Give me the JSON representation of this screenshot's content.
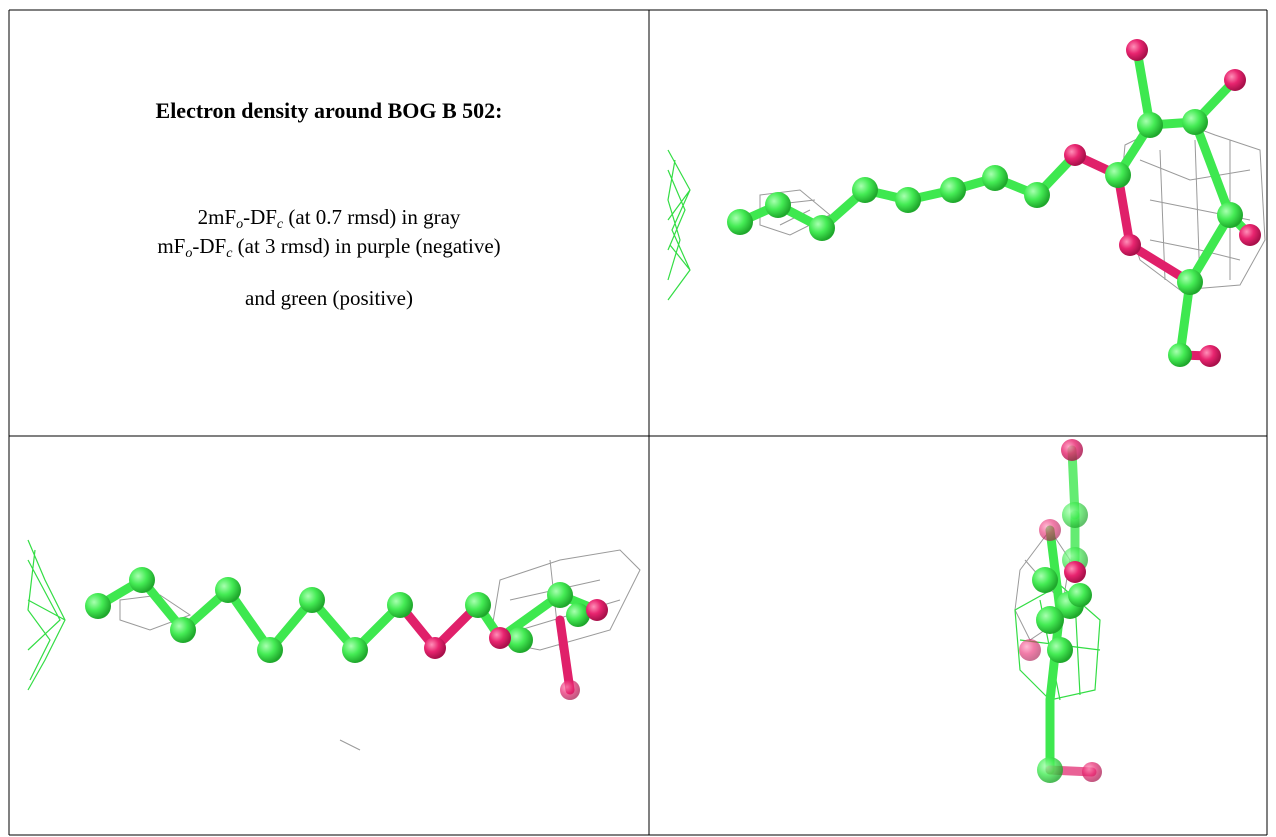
{
  "header": {
    "title": "Electron density around BOG B 502:"
  },
  "legend": {
    "lines": [
      [
        "2mF",
        "o",
        "-DF",
        "c",
        " (at 0.7 rmsd) in gray"
      ],
      [
        "mF",
        "o",
        "-DF",
        "c",
        " (at 3 rmsd) in purple (negative)"
      ],
      [
        "and green (positive)"
      ]
    ]
  }
}
